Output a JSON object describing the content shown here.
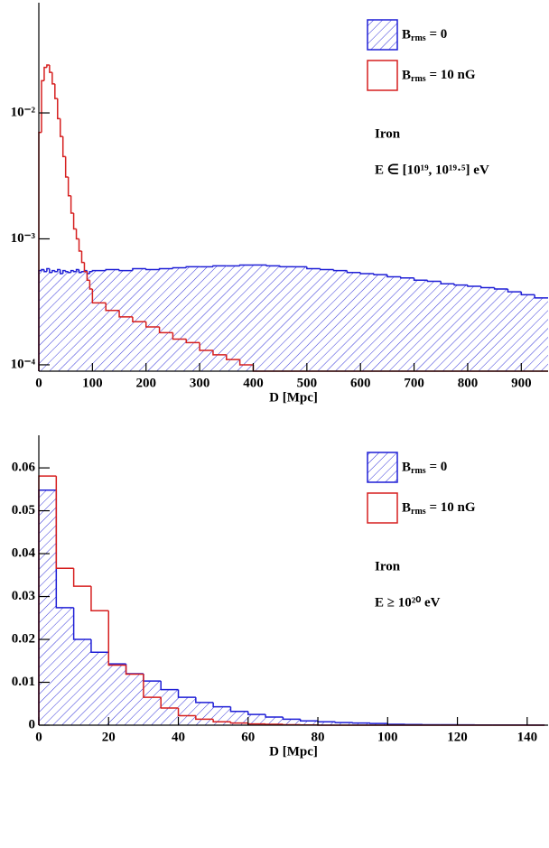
{
  "chart_data": [
    {
      "type": "histogram",
      "xlabel": "D [Mpc]",
      "log_y": true,
      "legend": "upper right",
      "bins": [
        0,
        5,
        10,
        15,
        20,
        25,
        30,
        35,
        40,
        45,
        50,
        55,
        60,
        65,
        70,
        75,
        80,
        85,
        90,
        95,
        100,
        125,
        150,
        175,
        200,
        225,
        250,
        275,
        300,
        325,
        350,
        375,
        400,
        425,
        450,
        475,
        500,
        525,
        550,
        575,
        600,
        625,
        650,
        675,
        700,
        725,
        750,
        775,
        800,
        825,
        850,
        875,
        900,
        925,
        950
      ],
      "series": [
        {
          "name": "Brms = 0",
          "color": "#1f1fd6",
          "hatch": true,
          "values": [
            0.00056,
            0.00057,
            0.00055,
            0.00058,
            0.00054,
            0.00056,
            0.00055,
            0.00057,
            0.00053,
            0.00056,
            0.00055,
            0.00054,
            0.00056,
            0.00055,
            0.00057,
            0.00054,
            0.00055,
            0.00056,
            0.00053,
            0.00055,
            0.00056,
            0.00057,
            0.00056,
            0.00058,
            0.00057,
            0.00058,
            0.00059,
            0.0006,
            0.0006,
            0.00061,
            0.00061,
            0.00062,
            0.00062,
            0.00061,
            0.0006,
            0.0006,
            0.00058,
            0.00057,
            0.00056,
            0.00054,
            0.00053,
            0.00052,
            0.0005,
            0.00049,
            0.00047,
            0.00046,
            0.00044,
            0.00043,
            0.00042,
            0.00041,
            0.0004,
            0.00038,
            0.00036,
            0.00034
          ]
        },
        {
          "name": "Brms = 10 nG",
          "color": "#d61f1f",
          "hatch": false,
          "values": [
            0.007,
            0.018,
            0.023,
            0.024,
            0.021,
            0.017,
            0.013,
            0.009,
            0.0065,
            0.0045,
            0.0031,
            0.0022,
            0.0016,
            0.0012,
            0.001,
            0.0008,
            0.00065,
            0.00055,
            0.00047,
            0.0004,
            0.00031,
            0.00027,
            0.00024,
            0.00022,
            0.0002,
            0.00018,
            0.00016,
            0.00015,
            0.00013,
            0.00012,
            0.00011,
            0.0001,
            null,
            null,
            null,
            null,
            null,
            null,
            null,
            null,
            null,
            null,
            null,
            null,
            null,
            null,
            null,
            null,
            null,
            null,
            null,
            null,
            null,
            null
          ]
        }
      ],
      "xlim": [
        0,
        950
      ],
      "ylim": [
        8.9e-05,
        0.075
      ],
      "xticks": [
        0,
        100,
        200,
        300,
        400,
        500,
        600,
        700,
        800,
        900
      ],
      "yticks": [
        {
          "value": 0.0001,
          "label": "10⁻⁴"
        },
        {
          "value": 0.001,
          "label": "10⁻³"
        },
        {
          "value": 0.01,
          "label": "10⁻²"
        }
      ],
      "annotations": [
        "Iron",
        "E ∈ [10¹⁹, 10¹⁹·⁵] eV"
      ]
    },
    {
      "type": "histogram",
      "xlabel": "D [Mpc]",
      "log_y": false,
      "legend": "upper right",
      "bins": [
        0,
        5,
        10,
        15,
        20,
        25,
        30,
        35,
        40,
        45,
        50,
        55,
        60,
        65,
        70,
        75,
        80,
        85,
        90,
        95,
        100,
        105,
        110,
        115,
        120,
        125,
        130,
        135,
        140,
        145
      ],
      "series": [
        {
          "name": "Brms = 0",
          "color": "#1f1fd6",
          "hatch": true,
          "values": [
            0.0548,
            0.0274,
            0.02,
            0.017,
            0.0143,
            0.012,
            0.0103,
            0.0083,
            0.0065,
            0.0053,
            0.0043,
            0.0032,
            0.0025,
            0.0019,
            0.0014,
            0.001,
            0.0008,
            0.0006,
            0.0005,
            0.0004,
            0.0002,
            0.00015,
            0.0001,
            0.0001,
            8e-05,
            6e-05,
            5e-05,
            4e-05,
            3e-05
          ]
        },
        {
          "name": "Brms = 10 nG",
          "color": "#d61f1f",
          "hatch": false,
          "values": [
            0.0581,
            0.0366,
            0.0324,
            0.0267,
            0.014,
            0.0119,
            0.0065,
            0.004,
            0.0022,
            0.0014,
            0.0008,
            0.0005,
            0.0003,
            0.0002,
            0.0001,
            5e-05,
            0,
            0,
            0,
            0,
            0,
            0,
            0,
            0,
            0,
            0,
            0,
            0,
            0
          ]
        }
      ],
      "xlim": [
        0,
        146
      ],
      "ylim": [
        0,
        0.0676
      ],
      "xticks": [
        0,
        20,
        40,
        60,
        80,
        100,
        120,
        140
      ],
      "yticks": [
        0,
        0.01,
        0.02,
        0.03,
        0.04,
        0.05,
        0.06
      ],
      "annotations": [
        "Iron",
        "E ≥ 10²⁰ eV"
      ]
    }
  ]
}
